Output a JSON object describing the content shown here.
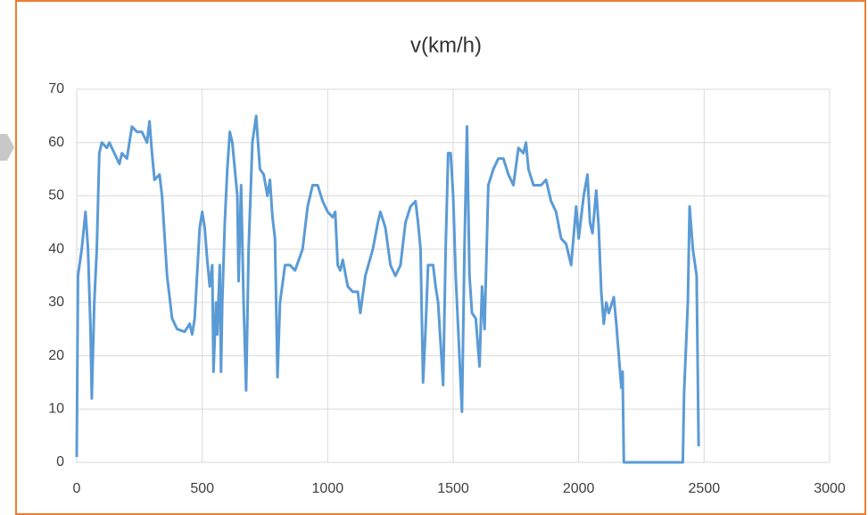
{
  "chart_data": {
    "type": "line",
    "title": "v(km/h)",
    "x": [
      0,
      5,
      20,
      35,
      45,
      55,
      60,
      70,
      80,
      90,
      100,
      120,
      130,
      150,
      170,
      180,
      200,
      220,
      240,
      260,
      280,
      290,
      300,
      310,
      330,
      340,
      360,
      380,
      400,
      430,
      450,
      460,
      470,
      490,
      500,
      510,
      520,
      530,
      540,
      545,
      555,
      560,
      570,
      575,
      580,
      590,
      600,
      610,
      620,
      630,
      640,
      645,
      655,
      665,
      675,
      685,
      700,
      715,
      730,
      745,
      760,
      770,
      780,
      790,
      800,
      810,
      830,
      850,
      870,
      900,
      920,
      940,
      960,
      980,
      1000,
      1020,
      1030,
      1040,
      1050,
      1060,
      1080,
      1100,
      1120,
      1130,
      1150,
      1180,
      1200,
      1210,
      1230,
      1250,
      1270,
      1290,
      1310,
      1330,
      1350,
      1360,
      1370,
      1380,
      1390,
      1400,
      1420,
      1430,
      1440,
      1460,
      1470,
      1480,
      1490,
      1500,
      1510,
      1520,
      1535,
      1545,
      1555,
      1565,
      1575,
      1590,
      1605,
      1615,
      1625,
      1640,
      1660,
      1680,
      1700,
      1720,
      1740,
      1760,
      1780,
      1790,
      1800,
      1820,
      1850,
      1870,
      1890,
      1910,
      1930,
      1950,
      1970,
      1990,
      2000,
      2020,
      2035,
      2045,
      2055,
      2070,
      2080,
      2090,
      2100,
      2110,
      2120,
      2140,
      2150,
      2160,
      2170,
      2175,
      2180,
      2415,
      2420,
      2435,
      2442,
      2455,
      2470,
      2478
    ],
    "values": [
      1,
      35,
      40,
      47,
      40,
      25,
      12,
      30,
      40,
      58,
      60,
      59,
      60,
      58,
      56,
      58,
      57,
      63,
      62,
      62,
      60,
      64,
      58,
      53,
      54,
      50,
      35,
      27,
      25,
      24.5,
      26,
      24,
      27,
      44,
      47,
      44,
      38,
      33,
      37,
      17,
      30,
      24,
      37,
      17,
      30,
      45,
      55,
      62,
      60,
      55,
      50,
      34,
      52,
      30,
      13.5,
      40,
      60,
      65,
      55,
      54,
      50,
      53,
      46,
      42,
      16,
      30,
      37,
      37,
      36,
      40,
      48,
      52,
      52,
      49,
      47,
      46,
      47,
      37,
      36,
      38,
      33,
      32,
      32,
      28,
      35,
      40,
      45,
      47,
      44,
      37,
      35,
      37,
      45,
      48,
      49,
      45,
      40,
      15,
      25,
      37,
      37,
      33,
      30,
      14.5,
      40,
      58,
      58,
      50,
      35,
      25,
      9.5,
      40,
      63,
      35,
      28,
      27,
      18,
      33,
      25,
      52,
      55,
      57,
      57,
      54,
      52,
      59,
      58,
      60,
      55,
      52,
      52,
      53,
      49,
      47,
      42,
      41,
      37,
      48,
      42,
      50,
      54,
      45,
      43,
      51,
      44,
      32,
      26,
      30,
      28,
      31,
      26,
      20,
      14,
      17,
      0,
      0,
      13,
      30,
      48,
      40,
      35,
      3
    ],
    "color": "#5b9bd5",
    "xlim": [
      0,
      3000
    ],
    "xticks": [
      0,
      500,
      1000,
      1500,
      2000,
      2500,
      3000
    ],
    "ylim": [
      0,
      70
    ],
    "yticks": [
      0,
      10,
      20,
      30,
      40,
      50,
      60,
      70
    ],
    "grid": true
  }
}
